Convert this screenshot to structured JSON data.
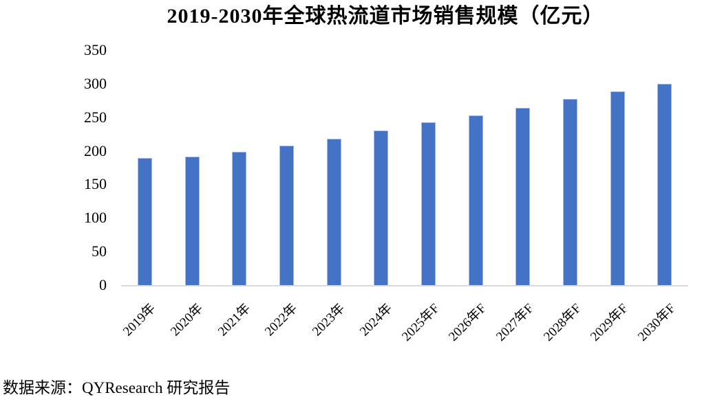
{
  "title": "2019-2030年全球热流道市场销售规模（亿元）",
  "source_note": "数据来源：QYResearch 研究报告",
  "colors": {
    "bar_fill": "#4472C4",
    "bar_border": "#A3BAE8",
    "axis_line": "#D9D9D9",
    "text": "#000000",
    "background": "#FFFFFF"
  },
  "chart_data": {
    "type": "bar",
    "title": "2019-2030年全球热流道市场销售规模（亿元）",
    "categories": [
      "2019年",
      "2020年",
      "2021年",
      "2022年",
      "2023年",
      "2024年",
      "2025年F",
      "2026年F",
      "2027年F",
      "2028年F",
      "2029年F",
      "2030年F"
    ],
    "values": [
      189,
      191,
      199,
      208,
      218,
      230,
      243,
      253,
      264,
      277,
      289,
      300
    ],
    "unit": "亿元",
    "xlabel": "",
    "ylabel": "",
    "ylim": [
      0,
      350
    ],
    "yticks": [
      0,
      50,
      100,
      150,
      200,
      250,
      300,
      350
    ],
    "grid": false,
    "legend": false,
    "x_tick_rotation_deg": -45
  }
}
